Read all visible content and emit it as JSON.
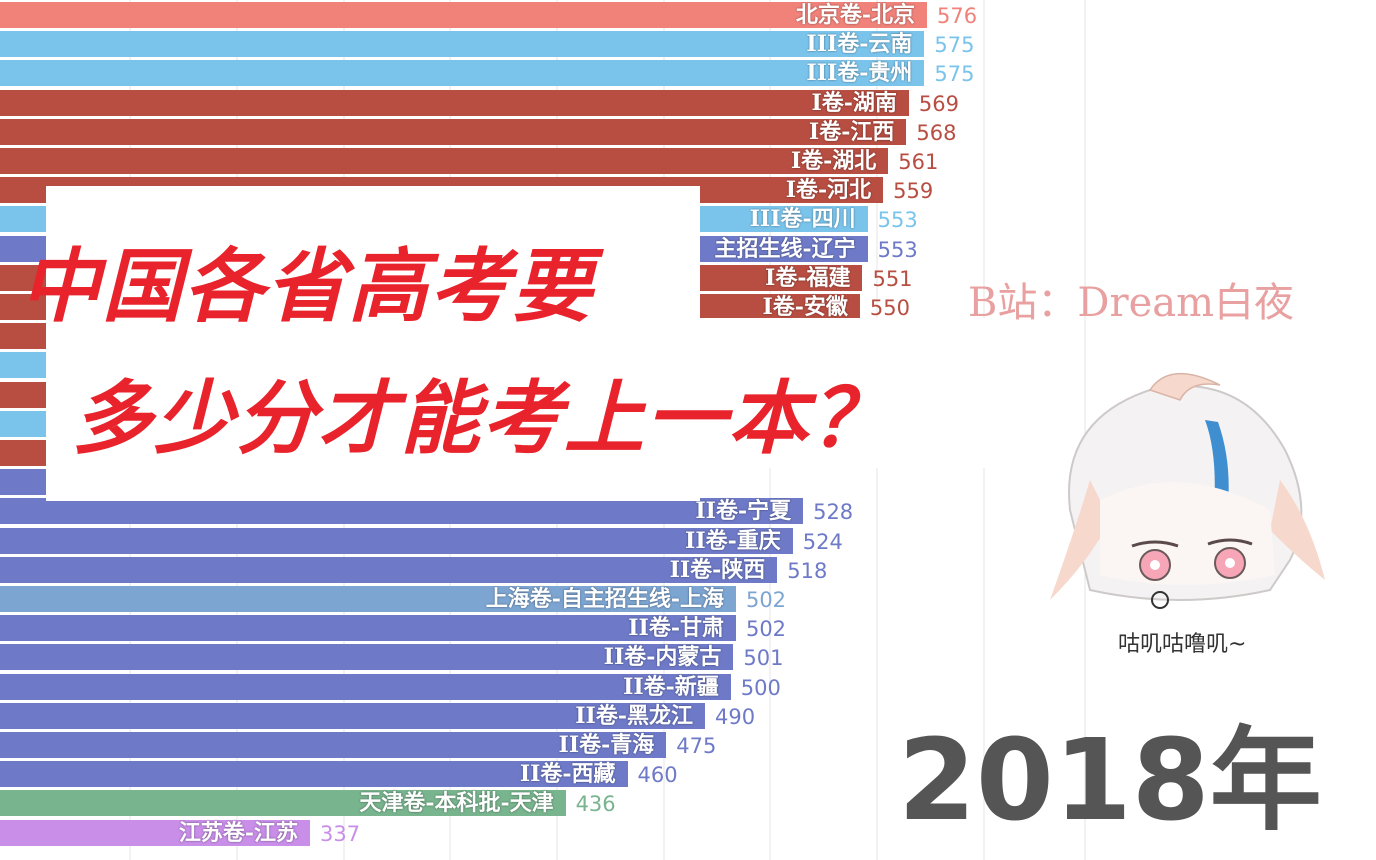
{
  "chart_data": {
    "type": "bar",
    "orientation": "horizontal",
    "categories": [
      "北京卷-北京",
      "III卷-云南",
      "III卷-贵州",
      "I卷-湖南",
      "I卷-江西",
      "I卷-湖北",
      "I卷-河北",
      "III卷-四川",
      "主招生线-辽宁",
      "I卷-福建",
      "I卷-安徽",
      "",
      "",
      "",
      "",
      "",
      "",
      "II卷-宁夏",
      "II卷-重庆",
      "II卷-陕西",
      "上海卷-自主招生线-上海",
      "II卷-甘肃",
      "II卷-内蒙古",
      "II卷-新疆",
      "II卷-黑龙江",
      "II卷-青海",
      "II卷-西藏",
      "天津卷-本科批-天津",
      "江苏卷-江苏"
    ],
    "values": [
      576,
      575,
      575,
      569,
      568,
      561,
      559,
      553,
      553,
      551,
      550,
      null,
      null,
      null,
      null,
      null,
      null,
      528,
      524,
      518,
      502,
      502,
      501,
      500,
      490,
      475,
      460,
      436,
      337
    ],
    "value_labels": [
      "576",
      "575",
      "575",
      "569",
      "568",
      "561",
      "559",
      "553",
      "553",
      "551",
      "550",
      "",
      "",
      "",
      "",
      "",
      "",
      "528",
      "524",
      "518",
      "502",
      "502",
      "501",
      "500",
      "490",
      "475",
      "460",
      "436",
      "337"
    ],
    "bar_colors": [
      "#f0827a",
      "#7ac4ec",
      "#7ac4ec",
      "#b84e42",
      "#b84e42",
      "#b84e42",
      "#b84e42",
      "#7ac4ec",
      "#6e7ac8",
      "#b84e42",
      "#b84e42",
      "#b84e42",
      "#7ac4ec",
      "#b84e42",
      "#7ac4ec",
      "#b84e42",
      "#6e7ac8",
      "#6e7ac8",
      "#6e7ac8",
      "#6e7ac8",
      "#7da5d2",
      "#6e7ac8",
      "#6e7ac8",
      "#6e7ac8",
      "#6e7ac8",
      "#6e7ac8",
      "#6e7ac8",
      "#78b48e",
      "#c88ee8"
    ],
    "grid": true
  },
  "title_line1": "中国各省高考要",
  "title_line2": "多少分才能考上一本？",
  "watermark": "B站：Dream白夜",
  "year_label": "2018年",
  "mascot_caption": "咕叽咕噜叽~",
  "colors": {
    "title": "#e8232b",
    "watermark": "#e8a0a0",
    "year": "#555555"
  }
}
